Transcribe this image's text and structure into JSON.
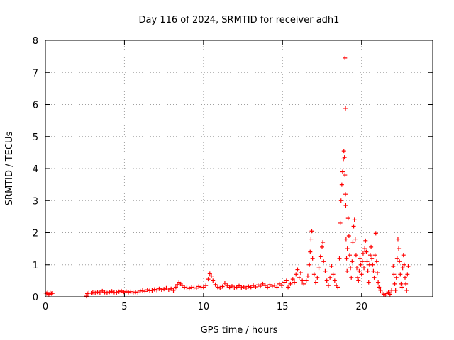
{
  "chart_data": {
    "type": "scatter",
    "title": "Day 116 of 2024, SRMTID for receiver adh1",
    "xlabel": "GPS time / hours",
    "ylabel": "SRMTID / TECUs",
    "xlim": [
      0,
      24.5
    ],
    "ylim": [
      0,
      8
    ],
    "x_ticks": [
      0,
      5,
      10,
      15,
      20
    ],
    "y_ticks": [
      0,
      1,
      2,
      3,
      4,
      5,
      6,
      7,
      8
    ],
    "grid": true,
    "marker": "+",
    "color": "#ff0000",
    "series": [
      {
        "name": "SRMTID",
        "points": [
          [
            0.0,
            0.12
          ],
          [
            0.08,
            0.1
          ],
          [
            0.15,
            0.13
          ],
          [
            0.22,
            0.08
          ],
          [
            0.3,
            0.12
          ],
          [
            0.38,
            0.1
          ],
          [
            0.45,
            0.11
          ],
          [
            2.6,
            0.02
          ],
          [
            2.65,
            0.1
          ],
          [
            2.75,
            0.12
          ],
          [
            2.9,
            0.11
          ],
          [
            3.0,
            0.14
          ],
          [
            3.15,
            0.12
          ],
          [
            3.3,
            0.15
          ],
          [
            3.45,
            0.13
          ],
          [
            3.6,
            0.18
          ],
          [
            3.75,
            0.14
          ],
          [
            3.9,
            0.12
          ],
          [
            4.05,
            0.15
          ],
          [
            4.2,
            0.17
          ],
          [
            4.35,
            0.14
          ],
          [
            4.5,
            0.13
          ],
          [
            4.65,
            0.16
          ],
          [
            4.8,
            0.18
          ],
          [
            4.95,
            0.15
          ],
          [
            5.1,
            0.17
          ],
          [
            5.25,
            0.14
          ],
          [
            5.4,
            0.16
          ],
          [
            5.55,
            0.12
          ],
          [
            5.7,
            0.15
          ],
          [
            5.85,
            0.13
          ],
          [
            6.0,
            0.18
          ],
          [
            6.15,
            0.2
          ],
          [
            6.3,
            0.17
          ],
          [
            6.45,
            0.22
          ],
          [
            6.6,
            0.19
          ],
          [
            6.75,
            0.2
          ],
          [
            6.9,
            0.23
          ],
          [
            7.05,
            0.21
          ],
          [
            7.2,
            0.25
          ],
          [
            7.35,
            0.22
          ],
          [
            7.5,
            0.24
          ],
          [
            7.65,
            0.27
          ],
          [
            7.8,
            0.22
          ],
          [
            7.95,
            0.25
          ],
          [
            8.1,
            0.2
          ],
          [
            8.25,
            0.3
          ],
          [
            8.35,
            0.38
          ],
          [
            8.45,
            0.45
          ],
          [
            8.55,
            0.4
          ],
          [
            8.65,
            0.35
          ],
          [
            8.8,
            0.3
          ],
          [
            8.95,
            0.28
          ],
          [
            9.1,
            0.26
          ],
          [
            9.25,
            0.3
          ],
          [
            9.4,
            0.28
          ],
          [
            9.55,
            0.27
          ],
          [
            9.7,
            0.32
          ],
          [
            9.85,
            0.29
          ],
          [
            10.0,
            0.3
          ],
          [
            10.15,
            0.35
          ],
          [
            10.3,
            0.55
          ],
          [
            10.4,
            0.72
          ],
          [
            10.5,
            0.65
          ],
          [
            10.6,
            0.5
          ],
          [
            10.75,
            0.38
          ],
          [
            10.9,
            0.3
          ],
          [
            11.05,
            0.27
          ],
          [
            11.2,
            0.32
          ],
          [
            11.35,
            0.42
          ],
          [
            11.5,
            0.35
          ],
          [
            11.65,
            0.3
          ],
          [
            11.8,
            0.33
          ],
          [
            11.95,
            0.28
          ],
          [
            12.1,
            0.3
          ],
          [
            12.25,
            0.34
          ],
          [
            12.4,
            0.29
          ],
          [
            12.55,
            0.31
          ],
          [
            12.7,
            0.27
          ],
          [
            12.85,
            0.32
          ],
          [
            13.0,
            0.3
          ],
          [
            13.15,
            0.35
          ],
          [
            13.3,
            0.31
          ],
          [
            13.45,
            0.37
          ],
          [
            13.6,
            0.33
          ],
          [
            13.75,
            0.4
          ],
          [
            13.9,
            0.35
          ],
          [
            14.05,
            0.3
          ],
          [
            14.2,
            0.38
          ],
          [
            14.35,
            0.33
          ],
          [
            14.5,
            0.36
          ],
          [
            14.65,
            0.3
          ],
          [
            14.8,
            0.4
          ],
          [
            14.95,
            0.35
          ],
          [
            15.1,
            0.45
          ],
          [
            15.25,
            0.5
          ],
          [
            15.35,
            0.3
          ],
          [
            15.5,
            0.4
          ],
          [
            15.65,
            0.55
          ],
          [
            15.75,
            0.45
          ],
          [
            15.85,
            0.7
          ],
          [
            15.95,
            0.85
          ],
          [
            16.05,
            0.6
          ],
          [
            16.15,
            0.75
          ],
          [
            16.25,
            0.5
          ],
          [
            16.35,
            0.4
          ],
          [
            16.5,
            0.5
          ],
          [
            16.6,
            0.65
          ],
          [
            16.7,
            1.0
          ],
          [
            16.75,
            1.4
          ],
          [
            16.8,
            1.8
          ],
          [
            16.85,
            2.05
          ],
          [
            16.9,
            1.2
          ],
          [
            17.0,
            0.7
          ],
          [
            17.1,
            0.45
          ],
          [
            17.2,
            0.6
          ],
          [
            17.3,
            0.9
          ],
          [
            17.4,
            1.25
          ],
          [
            17.5,
            1.55
          ],
          [
            17.55,
            1.7
          ],
          [
            17.6,
            1.1
          ],
          [
            17.7,
            0.8
          ],
          [
            17.8,
            0.5
          ],
          [
            17.9,
            0.35
          ],
          [
            18.0,
            0.6
          ],
          [
            18.1,
            0.95
          ],
          [
            18.2,
            0.7
          ],
          [
            18.3,
            0.5
          ],
          [
            18.4,
            0.35
          ],
          [
            18.5,
            0.3
          ],
          [
            18.6,
            1.2
          ],
          [
            18.65,
            2.3
          ],
          [
            18.7,
            3.0
          ],
          [
            18.75,
            3.5
          ],
          [
            18.8,
            3.9
          ],
          [
            18.85,
            4.3
          ],
          [
            18.88,
            4.55
          ],
          [
            18.92,
            4.35
          ],
          [
            18.95,
            3.8
          ],
          [
            18.98,
            3.2
          ],
          [
            19.0,
            2.85
          ],
          [
            19.02,
            1.8
          ],
          [
            19.05,
            1.2
          ],
          [
            19.08,
            0.8
          ],
          [
            19.1,
            1.5
          ],
          [
            19.15,
            2.45
          ],
          [
            19.2,
            1.9
          ],
          [
            19.25,
            1.3
          ],
          [
            19.3,
            0.9
          ],
          [
            19.35,
            0.6
          ],
          [
            19.4,
            1.1
          ],
          [
            19.45,
            1.7
          ],
          [
            19.5,
            2.2
          ],
          [
            19.55,
            2.4
          ],
          [
            19.6,
            1.8
          ],
          [
            19.65,
            1.3
          ],
          [
            19.7,
            0.9
          ],
          [
            19.75,
            0.6
          ],
          [
            19.8,
            0.5
          ],
          [
            19.85,
            0.8
          ],
          [
            19.9,
            1.2
          ],
          [
            19.95,
            1.0
          ],
          [
            20.0,
            0.7
          ],
          [
            20.05,
            1.1
          ],
          [
            20.1,
            1.35
          ],
          [
            20.15,
            0.9
          ],
          [
            20.2,
            1.5
          ],
          [
            20.25,
            1.75
          ],
          [
            20.3,
            1.4
          ],
          [
            20.35,
            1.1
          ],
          [
            20.4,
            0.8
          ],
          [
            20.45,
            0.45
          ],
          [
            20.5,
            1.0
          ],
          [
            20.55,
            1.3
          ],
          [
            20.6,
            1.55
          ],
          [
            20.65,
            1.2
          ],
          [
            20.7,
            1.0
          ],
          [
            20.75,
            0.8
          ],
          [
            20.8,
            0.6
          ],
          [
            20.85,
            1.3
          ],
          [
            20.9,
            1.98
          ],
          [
            20.95,
            1.1
          ],
          [
            21.0,
            0.75
          ],
          [
            21.05,
            0.45
          ],
          [
            21.1,
            0.3
          ],
          [
            21.2,
            0.2
          ],
          [
            21.3,
            0.12
          ],
          [
            21.4,
            0.08
          ],
          [
            21.5,
            0.05
          ],
          [
            21.6,
            0.1
          ],
          [
            21.7,
            0.15
          ],
          [
            21.8,
            0.08
          ],
          [
            21.9,
            0.2
          ],
          [
            22.0,
            0.95
          ],
          [
            22.05,
            0.7
          ],
          [
            22.1,
            0.4
          ],
          [
            22.15,
            0.2
          ],
          [
            22.2,
            0.6
          ],
          [
            22.25,
            1.2
          ],
          [
            22.3,
            1.8
          ],
          [
            22.35,
            1.5
          ],
          [
            22.4,
            1.1
          ],
          [
            22.45,
            0.7
          ],
          [
            22.5,
            0.4
          ],
          [
            22.55,
            0.3
          ],
          [
            22.6,
            0.9
          ],
          [
            22.65,
            1.3
          ],
          [
            22.7,
            1.0
          ],
          [
            22.75,
            0.6
          ],
          [
            22.8,
            0.4
          ],
          [
            22.85,
            0.2
          ],
          [
            22.9,
            0.7
          ],
          [
            22.95,
            0.95
          ],
          [
            18.95,
            7.45
          ],
          [
            18.98,
            5.88
          ]
        ]
      }
    ]
  }
}
